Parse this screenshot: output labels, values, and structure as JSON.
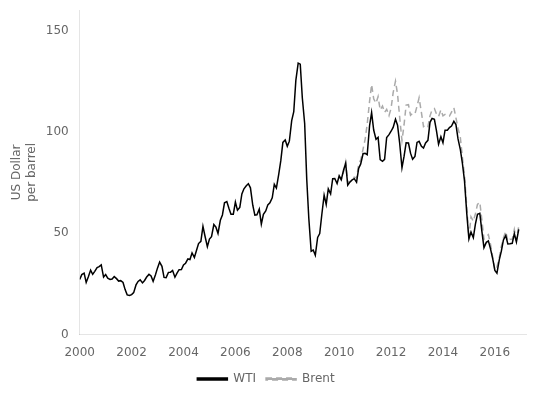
{
  "chart_data": {
    "type": "line",
    "ylabel": "US Dollar\nper barrel",
    "xlim": [
      2000.0,
      2017.2
    ],
    "xticks": [
      2000,
      2002,
      2004,
      2006,
      2008,
      2010,
      2012,
      2014,
      2016
    ],
    "ylim": [
      0,
      160
    ],
    "yticks": [
      0,
      50,
      100,
      150
    ],
    "grid": false,
    "legend": "bottom",
    "series": [
      {
        "name": "WTI",
        "color": "#000000",
        "line_style": "solid",
        "x": [
          2000.0,
          2000.08,
          2000.17,
          2000.25,
          2000.33,
          2000.42,
          2000.5,
          2000.58,
          2000.67,
          2000.75,
          2000.83,
          2000.92,
          2001.0,
          2001.08,
          2001.17,
          2001.25,
          2001.33,
          2001.42,
          2001.5,
          2001.58,
          2001.67,
          2001.75,
          2001.83,
          2001.92,
          2002.0,
          2002.08,
          2002.17,
          2002.25,
          2002.33,
          2002.42,
          2002.5,
          2002.58,
          2002.67,
          2002.75,
          2002.83,
          2002.92,
          2003.0,
          2003.08,
          2003.17,
          2003.25,
          2003.33,
          2003.42,
          2003.5,
          2003.58,
          2003.67,
          2003.75,
          2003.83,
          2003.92,
          2004.0,
          2004.08,
          2004.17,
          2004.25,
          2004.33,
          2004.42,
          2004.5,
          2004.58,
          2004.67,
          2004.75,
          2004.83,
          2004.92,
          2005.0,
          2005.08,
          2005.17,
          2005.25,
          2005.33,
          2005.42,
          2005.5,
          2005.58,
          2005.67,
          2005.75,
          2005.83,
          2005.92,
          2006.0,
          2006.08,
          2006.17,
          2006.25,
          2006.33,
          2006.42,
          2006.5,
          2006.58,
          2006.67,
          2006.75,
          2006.83,
          2006.92,
          2007.0,
          2007.08,
          2007.17,
          2007.25,
          2007.33,
          2007.42,
          2007.5,
          2007.58,
          2007.67,
          2007.75,
          2007.83,
          2007.92,
          2008.0,
          2008.08,
          2008.17,
          2008.25,
          2008.33,
          2008.42,
          2008.5,
          2008.58,
          2008.67,
          2008.75,
          2008.83,
          2008.92,
          2009.0,
          2009.08,
          2009.17,
          2009.25,
          2009.33,
          2009.42,
          2009.5,
          2009.58,
          2009.67,
          2009.75,
          2009.83,
          2009.92,
          2010.0,
          2010.08,
          2010.17,
          2010.25,
          2010.33,
          2010.42,
          2010.5,
          2010.58,
          2010.67,
          2010.75,
          2010.83,
          2010.92,
          2011.0,
          2011.08,
          2011.17,
          2011.25,
          2011.33,
          2011.42,
          2011.5,
          2011.58,
          2011.67,
          2011.75,
          2011.83,
          2011.92,
          2012.0,
          2012.08,
          2012.17,
          2012.25,
          2012.33,
          2012.42,
          2012.5,
          2012.58,
          2012.67,
          2012.75,
          2012.83,
          2012.92,
          2013.0,
          2013.08,
          2013.17,
          2013.25,
          2013.33,
          2013.42,
          2013.5,
          2013.58,
          2013.67,
          2013.75,
          2013.83,
          2013.92,
          2014.0,
          2014.08,
          2014.17,
          2014.25,
          2014.33,
          2014.42,
          2014.5,
          2014.58,
          2014.67,
          2014.75,
          2014.83,
          2014.92,
          2015.0,
          2015.08,
          2015.17,
          2015.25,
          2015.33,
          2015.42,
          2015.5,
          2015.58,
          2015.67,
          2015.75,
          2015.83,
          2015.92,
          2016.0,
          2016.08,
          2016.17,
          2016.25,
          2016.33,
          2016.42,
          2016.5,
          2016.58,
          2016.67,
          2016.75,
          2016.83,
          2016.92
        ],
        "values": [
          27.2,
          29.6,
          30.3,
          25.7,
          28.4,
          31.8,
          29.7,
          31.2,
          33.1,
          33.5,
          34.4,
          28.4,
          29.6,
          27.8,
          27.2,
          27.4,
          28.6,
          27.6,
          26.4,
          26.6,
          25.7,
          22.2,
          19.6,
          19.3,
          19.7,
          20.7,
          24.5,
          26.2,
          27.0,
          25.5,
          26.7,
          28.4,
          29.7,
          28.9,
          26.3,
          29.5,
          32.9,
          35.8,
          33.7,
          28.2,
          28.1,
          30.7,
          30.8,
          31.6,
          28.3,
          30.3,
          32.0,
          32.1,
          34.3,
          35.2,
          37.3,
          37.0,
          40.3,
          38.0,
          41.5,
          44.9,
          46.0,
          53.4,
          48.5,
          43.4,
          47.1,
          48.3,
          54.3,
          53.0,
          49.9,
          56.4,
          59.0,
          65.0,
          65.6,
          62.3,
          59.4,
          59.4,
          65.4,
          61.4,
          62.7,
          69.4,
          71.9,
          73.4,
          74.4,
          72.4,
          63.8,
          58.9,
          59.1,
          61.9,
          54.5,
          59.3,
          61.0,
          64.0,
          65.0,
          67.5,
          74.1,
          72.3,
          79.0,
          85.8,
          94.8,
          96.0,
          92.9,
          95.4,
          105.5,
          110.0,
          125.4,
          133.9,
          133.4,
          116.7,
          104.1,
          76.6,
          57.3,
          41.1,
          41.7,
          39.1,
          47.9,
          49.8,
          59.1,
          68.8,
          64.2,
          71.9,
          69.4,
          76.9,
          77.0,
          74.5,
          78.3,
          76.4,
          81.2,
          84.5,
          73.7,
          75.3,
          76.3,
          76.9,
          75.2,
          82.0,
          84.2,
          89.2,
          89.4,
          88.7,
          102.9,
          109.5,
          100.9,
          96.3,
          97.3,
          86.3,
          85.5,
          86.4,
          97.2,
          98.6,
          100.3,
          102.2,
          106.2,
          103.3,
          94.6,
          82.3,
          87.9,
          94.6,
          94.5,
          89.5,
          86.5,
          87.9,
          94.8,
          95.3,
          92.9,
          92.0,
          94.5,
          95.8,
          104.7,
          106.6,
          106.2,
          100.5,
          93.9,
          97.6,
          94.6,
          100.8,
          100.8,
          102.1,
          102.9,
          105.2,
          103.6,
          96.5,
          91.2,
          84.4,
          75.8,
          59.3,
          47.2,
          50.6,
          47.8,
          54.5,
          59.3,
          59.8,
          50.9,
          42.9,
          45.5,
          46.2,
          42.4,
          37.2,
          31.7,
          30.3,
          36.9,
          41.2,
          46.7,
          48.8,
          44.7,
          44.8,
          45.0,
          49.8,
          45.7,
          51.9
        ]
      },
      {
        "name": "Brent",
        "color": "#aaaaaa",
        "line_style": "dashed",
        "x": [
          2010.0,
          2010.08,
          2010.17,
          2010.25,
          2010.33,
          2010.42,
          2010.5,
          2010.58,
          2010.67,
          2010.75,
          2010.83,
          2010.92,
          2011.0,
          2011.08,
          2011.17,
          2011.25,
          2011.33,
          2011.42,
          2011.5,
          2011.58,
          2011.67,
          2011.75,
          2011.83,
          2011.92,
          2012.0,
          2012.08,
          2012.17,
          2012.25,
          2012.33,
          2012.42,
          2012.5,
          2012.58,
          2012.67,
          2012.75,
          2012.83,
          2012.92,
          2013.0,
          2013.08,
          2013.17,
          2013.25,
          2013.33,
          2013.42,
          2013.5,
          2013.58,
          2013.67,
          2013.75,
          2013.83,
          2013.92,
          2014.0,
          2014.08,
          2014.17,
          2014.25,
          2014.33,
          2014.42,
          2014.5,
          2014.58,
          2014.67,
          2014.75,
          2014.83,
          2014.92,
          2015.0,
          2015.08,
          2015.17,
          2015.25,
          2015.33,
          2015.42,
          2015.5,
          2015.58,
          2015.67,
          2015.75,
          2015.83,
          2015.92,
          2016.0,
          2016.08,
          2016.17,
          2016.25,
          2016.33,
          2016.42,
          2016.5,
          2016.58,
          2016.67,
          2016.75,
          2016.83,
          2016.92
        ],
        "values": [
          78.0,
          76.3,
          80.3,
          85.0,
          75.0,
          75.6,
          76.1,
          77.7,
          77.3,
          83.9,
          86.2,
          91.5,
          96.3,
          103.8,
          114.9,
          123.3,
          116.3,
          114.1,
          117.4,
          110.8,
          112.7,
          109.6,
          111.1,
          108.0,
          111.6,
          119.3,
          125.0,
          118.5,
          107.4,
          95.7,
          103.4,
          113.2,
          113.4,
          108.2,
          109.2,
          108.9,
          112.6,
          116.8,
          109.5,
          102.6,
          103.5,
          102.6,
          107.9,
          110.8,
          111.5,
          108.8,
          107.5,
          110.8,
          107.9,
          108.6,
          107.7,
          107.8,
          109.7,
          111.9,
          106.9,
          101.8,
          97.2,
          87.3,
          78.4,
          62.3,
          47.8,
          58.1,
          55.9,
          59.6,
          64.2,
          65.3,
          56.5,
          47.0,
          48.3,
          49.3,
          44.7,
          38.0,
          31.9,
          33.4,
          38.0,
          43.5,
          47.7,
          50.9,
          46.1,
          47.0,
          46.9,
          51.8,
          46.7,
          53.5
        ]
      }
    ]
  }
}
